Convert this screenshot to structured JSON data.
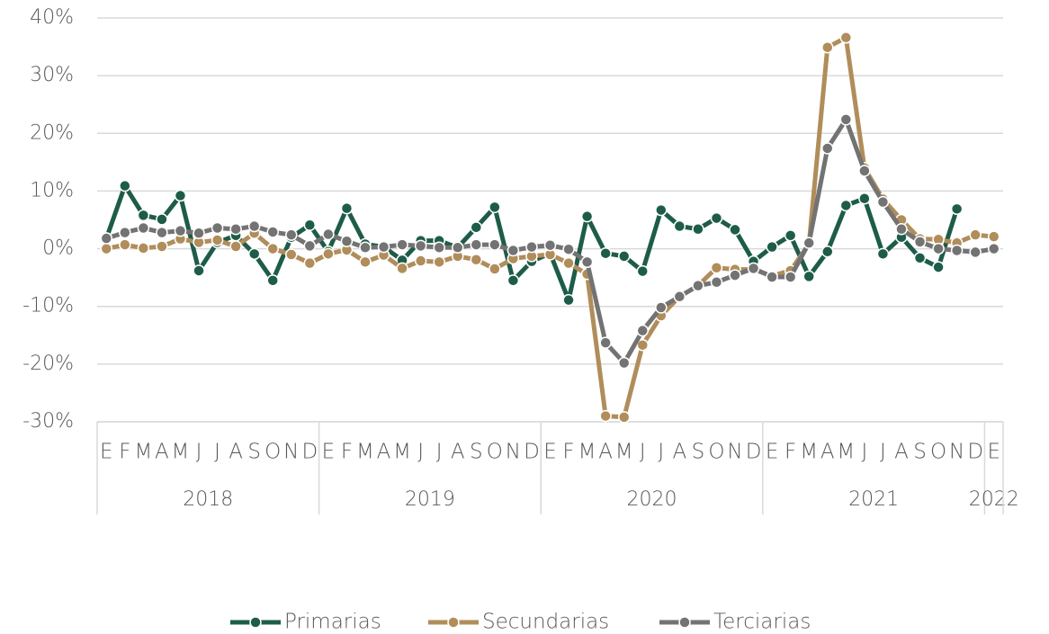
{
  "chart_data": {
    "type": "line",
    "categories": [
      "E",
      "F",
      "M",
      "A",
      "M",
      "J",
      "J",
      "A",
      "S",
      "O",
      "N",
      "D",
      "E",
      "F",
      "M",
      "A",
      "M",
      "J",
      "J",
      "A",
      "S",
      "O",
      "N",
      "D",
      "E",
      "F",
      "M",
      "A",
      "M",
      "J",
      "J",
      "A",
      "S",
      "O",
      "N",
      "D",
      "E",
      "F",
      "M",
      "A",
      "M",
      "J",
      "J",
      "A",
      "S",
      "O",
      "N",
      "D",
      "E"
    ],
    "years": [
      "2018",
      "2019",
      "2020",
      "2021",
      "2022"
    ],
    "series": [
      {
        "name": "Primarias",
        "color": "#1e5c4a",
        "values": [
          1.8,
          10.9,
          5.8,
          5.1,
          9.2,
          -3.8,
          1.1,
          2.3,
          -0.9,
          -5.5,
          2.0,
          4.1,
          -0.5,
          7.0,
          0.8,
          0.3,
          -2.0,
          1.4,
          1.4,
          0.2,
          3.7,
          7.2,
          -5.5,
          -2.2,
          -0.8,
          -8.9,
          5.6,
          -0.8,
          -1.3,
          -3.9,
          6.7,
          3.9,
          3.4,
          5.3,
          3.3,
          -2.2,
          0.3,
          2.3,
          -4.8,
          -0.5,
          7.5,
          8.7,
          -0.9,
          2.0,
          -1.6,
          -3.2,
          6.9,
          null,
          null
        ]
      },
      {
        "name": "Secundarias",
        "color": "#b08d5a",
        "values": [
          0,
          0.7,
          0.1,
          0.4,
          1.7,
          1.1,
          1.5,
          0.4,
          2.7,
          0,
          -1.0,
          -2.5,
          -0.9,
          -0.2,
          -2.3,
          -1.1,
          -3.4,
          -2.1,
          -2.3,
          -1.3,
          -1.9,
          -3.5,
          -1.7,
          -1.3,
          -1.0,
          -2.5,
          -4.4,
          -29.0,
          -29.2,
          -16.7,
          -11.6,
          -8.3,
          -6.4,
          -3.3,
          -3.6,
          -3.6,
          -4.7,
          -3.8,
          0.8,
          34.9,
          36.6,
          14.0,
          8.6,
          5.0,
          1.7,
          1.6,
          1.0,
          2.4,
          2.1
        ]
      },
      {
        "name": "Terciarias",
        "color": "#737373",
        "values": [
          1.8,
          2.8,
          3.6,
          2.8,
          3.1,
          2.7,
          3.6,
          3.4,
          3.9,
          2.9,
          2.4,
          0.5,
          2.5,
          1.3,
          0.2,
          0.3,
          0.7,
          0.5,
          0.2,
          0.2,
          0.7,
          0.7,
          -0.3,
          0.3,
          0.6,
          -0.1,
          -2.3,
          -16.3,
          -19.8,
          -14.2,
          -10.2,
          -8.3,
          -6.4,
          -5.8,
          -4.6,
          -3.4,
          -4.9,
          -4.9,
          1.0,
          17.4,
          22.4,
          13.5,
          8.1,
          3.4,
          1.2,
          0,
          -0.3,
          -0.6,
          0
        ]
      }
    ],
    "ylim": [
      -30,
      40
    ],
    "yticks": [
      {
        "value": -30,
        "label": "-30%"
      },
      {
        "value": -20,
        "label": "-20%"
      },
      {
        "value": -10,
        "label": "-10%"
      },
      {
        "value": 0,
        "label": "0%"
      },
      {
        "value": 10,
        "label": "10%"
      },
      {
        "value": 20,
        "label": "20%"
      },
      {
        "value": 30,
        "label": "30%"
      },
      {
        "value": 40,
        "label": "40%"
      }
    ],
    "grid": true,
    "legend": "bottom"
  }
}
